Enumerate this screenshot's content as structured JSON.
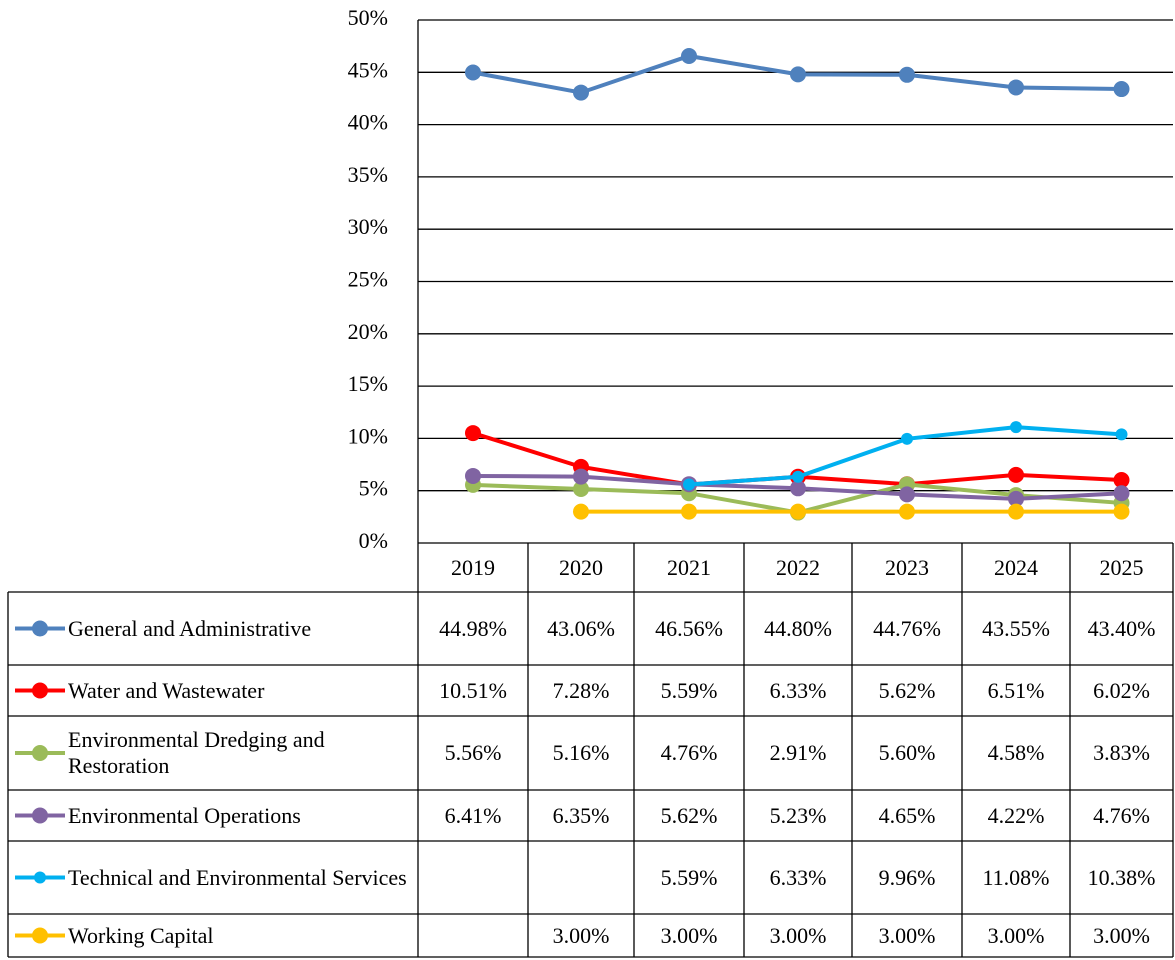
{
  "chart_data": {
    "type": "line",
    "categories": [
      "2019",
      "2020",
      "2021",
      "2022",
      "2023",
      "2024",
      "2025"
    ],
    "series": [
      {
        "name": "General and Administrative",
        "color": "#4f81bd",
        "values": [
          44.98,
          43.06,
          46.56,
          44.8,
          44.76,
          43.55,
          43.4
        ],
        "value_labels": [
          "44.98%",
          "43.06%",
          "46.56%",
          "44.80%",
          "44.76%",
          "43.55%",
          "43.40%"
        ]
      },
      {
        "name": "Water and Wastewater",
        "color": "#ff0000",
        "values": [
          10.51,
          7.28,
          5.59,
          6.33,
          5.62,
          6.51,
          6.02
        ],
        "value_labels": [
          "10.51%",
          "7.28%",
          "5.59%",
          "6.33%",
          "5.62%",
          "6.51%",
          "6.02%"
        ]
      },
      {
        "name": "Environmental Dredging and Restoration",
        "color": "#9bbb59",
        "values": [
          5.56,
          5.16,
          4.76,
          2.91,
          5.6,
          4.58,
          3.83
        ],
        "value_labels": [
          "5.56%",
          "5.16%",
          "4.76%",
          "2.91%",
          "5.60%",
          "4.58%",
          "3.83%"
        ]
      },
      {
        "name": "Environmental Operations",
        "color": "#8064a2",
        "values": [
          6.41,
          6.35,
          5.62,
          5.23,
          4.65,
          4.22,
          4.76
        ],
        "value_labels": [
          "6.41%",
          "6.35%",
          "5.62%",
          "5.23%",
          "4.65%",
          "4.22%",
          "4.76%"
        ]
      },
      {
        "name": "Technical and Environmental Services",
        "color": "#00b0f0",
        "values": [
          null,
          null,
          5.59,
          6.33,
          9.96,
          11.08,
          10.38
        ],
        "value_labels": [
          null,
          null,
          "5.59%",
          "6.33%",
          "9.96%",
          "11.08%",
          "10.38%"
        ]
      },
      {
        "name": "Working Capital",
        "color": "#ffc000",
        "values": [
          null,
          3.0,
          3.0,
          3.0,
          3.0,
          3.0,
          3.0
        ],
        "value_labels": [
          null,
          "3.00%",
          "3.00%",
          "3.00%",
          "3.00%",
          "3.00%",
          "3.00%"
        ]
      }
    ],
    "ylim": [
      0,
      50
    ],
    "yticks": [
      {
        "value": 0,
        "label": "0%"
      },
      {
        "value": 5,
        "label": "5%"
      },
      {
        "value": 10,
        "label": "10%"
      },
      {
        "value": 15,
        "label": "15%"
      },
      {
        "value": 20,
        "label": "20%"
      },
      {
        "value": 25,
        "label": "25%"
      },
      {
        "value": 30,
        "label": "30%"
      },
      {
        "value": 35,
        "label": "35%"
      },
      {
        "value": 40,
        "label": "40%"
      },
      {
        "value": 45,
        "label": "45%"
      },
      {
        "value": 50,
        "label": "50%"
      }
    ],
    "grid": true
  }
}
